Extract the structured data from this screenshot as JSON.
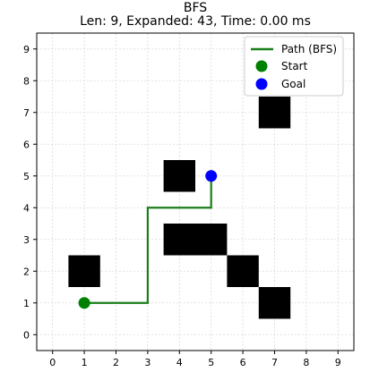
{
  "chart_data": {
    "type": "scatter",
    "title": "BFS",
    "subtitle": "Len: 9, Expanded: 43, Time: 0.00 ms",
    "xlabel": "",
    "ylabel": "",
    "xlim": [
      -0.5,
      9.5
    ],
    "ylim": [
      -0.5,
      9.5
    ],
    "xticks": [
      "0",
      "1",
      "2",
      "3",
      "4",
      "5",
      "6",
      "7",
      "8",
      "9"
    ],
    "yticks": [
      "0",
      "1",
      "2",
      "3",
      "4",
      "5",
      "6",
      "7",
      "8",
      "9"
    ],
    "grid": true,
    "legend_placement": "top-right",
    "obstacles": [
      {
        "x": 1,
        "y": 2
      },
      {
        "x": 4,
        "y": 3
      },
      {
        "x": 5,
        "y": 3
      },
      {
        "x": 6,
        "y": 2
      },
      {
        "x": 7,
        "y": 1
      },
      {
        "x": 4,
        "y": 5
      },
      {
        "x": 7,
        "y": 7
      }
    ],
    "series": [
      {
        "name": "Path (BFS)",
        "kind": "line",
        "color": "#1a7f1a",
        "x": [
          1,
          2,
          3,
          3,
          3,
          3,
          4,
          5,
          5
        ],
        "y": [
          1,
          1,
          1,
          2,
          3,
          4,
          4,
          4,
          5
        ]
      },
      {
        "name": "Start",
        "kind": "point",
        "color": "#008000",
        "x": [
          1
        ],
        "y": [
          1
        ]
      },
      {
        "name": "Goal",
        "kind": "point",
        "color": "#0000ff",
        "x": [
          5
        ],
        "y": [
          5
        ]
      }
    ],
    "obstacle_color": "#000000"
  }
}
